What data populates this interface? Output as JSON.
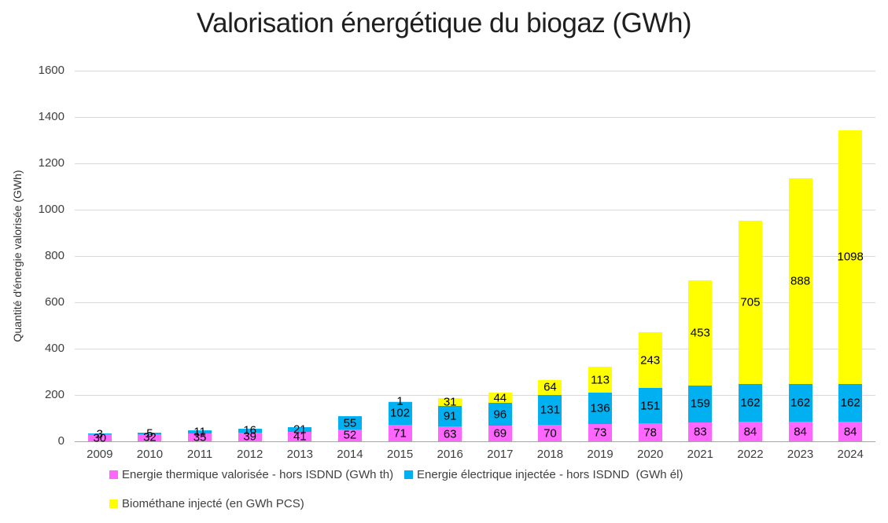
{
  "chart_data": {
    "type": "bar",
    "stacked": true,
    "title": "Valorisation énergétique du biogaz (GWh)",
    "ylabel": "Quantité d'énergie valorisée (GWh)",
    "xlabel": "",
    "ylim": [
      0,
      1600
    ],
    "ytick_step": 200,
    "grid": true,
    "legend_position": "bottom",
    "categories": [
      "2009",
      "2010",
      "2011",
      "2012",
      "2013",
      "2014",
      "2015",
      "2016",
      "2017",
      "2018",
      "2019",
      "2020",
      "2021",
      "2022",
      "2023",
      "2024"
    ],
    "series": [
      {
        "name": "Energie thermique valorisée - hors ISDND (GWh th)",
        "color": "#FF66FF",
        "values": [
          30,
          32,
          35,
          39,
          41,
          52,
          71,
          63,
          69,
          70,
          73,
          78,
          83,
          84,
          84,
          84
        ]
      },
      {
        "name": "Energie électrique injectée - hors ISDND  (GWh él)",
        "color": "#00B0F0",
        "values": [
          3,
          5,
          11,
          16,
          21,
          55,
          102,
          91,
          96,
          131,
          136,
          151,
          159,
          162,
          162,
          162
        ]
      },
      {
        "name": "Biométhane injecté (en GWh PCS)",
        "color": "#FFFF00",
        "values": [
          0,
          0,
          0,
          0,
          0,
          0,
          1,
          31,
          44,
          64,
          113,
          243,
          453,
          705,
          888,
          1098
        ]
      }
    ]
  },
  "colors": {
    "gridline": "#D9D9D9",
    "axis_line": "#A6A6A6",
    "tick_text": "#404040",
    "title_text": "#1F1F1F",
    "data_label_text": "#000000",
    "background": "#FFFFFF"
  }
}
